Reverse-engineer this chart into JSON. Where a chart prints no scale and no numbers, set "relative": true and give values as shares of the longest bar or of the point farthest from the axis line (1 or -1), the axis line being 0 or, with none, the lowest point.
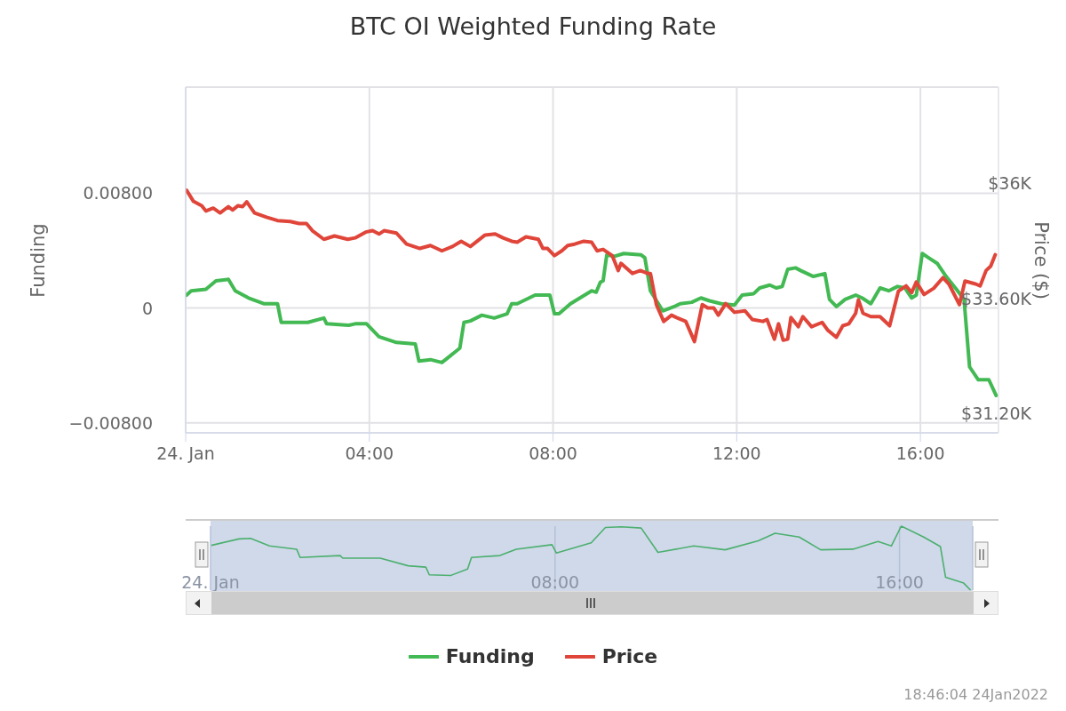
{
  "chart_data": [
    {
      "type": "line",
      "title": "BTC OI Weighted Funding Rate",
      "ylabel": "Funding",
      "y2label": "Price ($)",
      "xlim": [
        0,
        17.7
      ],
      "xticks": [
        {
          "value": 0,
          "label": "24. Jan"
        },
        {
          "value": 4,
          "label": "04:00"
        },
        {
          "value": 8,
          "label": "08:00"
        },
        {
          "value": 12,
          "label": "12:00"
        },
        {
          "value": 16,
          "label": "16:00"
        }
      ],
      "ylim": [
        -0.0087,
        0.0154
      ],
      "yticks": [
        {
          "value": -0.008,
          "label": "−0.00800"
        },
        0,
        {
          "value": 0.008,
          "label": "0.00800"
        }
      ],
      "y2lim": [
        31000,
        38200
      ],
      "y2ticks": [
        {
          "value": 31200,
          "label": "$31.20K"
        },
        {
          "value": 33600,
          "label": "$33.60K"
        },
        {
          "value": 36000,
          "label": "$36K"
        }
      ],
      "grid": true,
      "legend": "bottom",
      "marker": "none",
      "line_style": "solid",
      "annotations": [
        "18:46:04 24Jan2022"
      ],
      "series": [
        {
          "name": "Funding",
          "color": "#43b953",
          "x": [
            0.02,
            0.12,
            0.44,
            0.66,
            0.93,
            1.08,
            1.37,
            1.7,
            2.0,
            2.08,
            2.66,
            3.01,
            3.07,
            3.55,
            3.69,
            3.94,
            4.21,
            4.59,
            5.0,
            5.08,
            5.33,
            5.58,
            5.97,
            6.06,
            6.2,
            6.45,
            6.72,
            7.0,
            7.1,
            7.22,
            7.61,
            7.93,
            8.03,
            8.13,
            8.38,
            8.84,
            8.94,
            9.03,
            9.09,
            9.17,
            9.34,
            9.54,
            9.92,
            10.0,
            10.12,
            10.39,
            10.64,
            10.77,
            11.02,
            11.22,
            11.41,
            11.66,
            11.95,
            12.12,
            12.37,
            12.5,
            12.72,
            12.86,
            12.99,
            13.11,
            13.28,
            13.4,
            13.67,
            13.92,
            14.02,
            14.17,
            14.36,
            14.59,
            14.73,
            14.92,
            15.12,
            15.31,
            15.5,
            15.66,
            15.81,
            15.91,
            16.04,
            16.18,
            16.37,
            16.56,
            16.81,
            16.95,
            17.07,
            17.26,
            17.49,
            17.65
          ],
          "values": [
            0.0009,
            0.0012,
            0.0013,
            0.0019,
            0.002,
            0.0012,
            0.0007,
            0.0003,
            0.0003,
            -0.001,
            -0.001,
            -0.0007,
            -0.0011,
            -0.0012,
            -0.0011,
            -0.0011,
            -0.002,
            -0.0024,
            -0.0025,
            -0.0037,
            -0.0036,
            -0.0038,
            -0.0028,
            -0.001,
            -0.0009,
            -0.0005,
            -0.0007,
            -0.0004,
            0.0003,
            0.0003,
            0.0009,
            0.0009,
            -0.0004,
            -0.0004,
            0.0003,
            0.0012,
            0.0011,
            0.0018,
            0.0019,
            0.0037,
            0.0036,
            0.0038,
            0.0037,
            0.0035,
            0.0012,
            -0.0002,
            0.0001,
            0.0003,
            0.0004,
            0.0007,
            0.0005,
            0.0003,
            0.0002,
            0.0009,
            0.001,
            0.0014,
            0.0016,
            0.0014,
            0.0015,
            0.0027,
            0.0028,
            0.0026,
            0.0022,
            0.0024,
            0.0006,
            0.0001,
            0.0006,
            0.0009,
            0.0007,
            0.0003,
            0.0014,
            0.0012,
            0.0015,
            0.0014,
            0.0007,
            0.0009,
            0.0038,
            0.0035,
            0.0031,
            0.0022,
            0.0012,
            0.0006,
            -0.0041,
            -0.005,
            -0.005,
            -0.0061
          ]
        },
        {
          "name": "Price",
          "color": "#e0453a",
          "axis": "y2",
          "x": [
            0.02,
            0.17,
            0.35,
            0.44,
            0.6,
            0.75,
            0.93,
            1.02,
            1.14,
            1.24,
            1.33,
            1.5,
            1.76,
            2.0,
            2.28,
            2.47,
            2.63,
            2.76,
            3.01,
            3.24,
            3.53,
            3.69,
            3.92,
            4.07,
            4.21,
            4.32,
            4.59,
            4.81,
            5.1,
            5.33,
            5.58,
            5.81,
            6.0,
            6.2,
            6.52,
            6.74,
            6.91,
            7.1,
            7.22,
            7.41,
            7.68,
            7.78,
            7.88,
            8.03,
            8.19,
            8.32,
            8.47,
            8.67,
            8.84,
            8.96,
            9.09,
            9.29,
            9.42,
            9.48,
            9.73,
            9.9,
            10.06,
            10.12,
            10.25,
            10.41,
            10.58,
            10.69,
            10.89,
            11.08,
            11.25,
            11.37,
            11.5,
            11.6,
            11.76,
            11.95,
            12.18,
            12.34,
            12.57,
            12.66,
            12.82,
            12.91,
            13.01,
            13.11,
            13.18,
            13.34,
            13.44,
            13.63,
            13.86,
            13.98,
            14.17,
            14.31,
            14.44,
            14.59,
            14.65,
            14.75,
            14.92,
            15.12,
            15.33,
            15.52,
            15.69,
            15.81,
            15.91,
            16.08,
            16.29,
            16.49,
            16.62,
            16.85,
            16.97,
            17.2,
            17.3,
            17.43,
            17.53,
            17.63
          ],
          "values": [
            36050,
            35820,
            35730,
            35620,
            35680,
            35580,
            35710,
            35640,
            35730,
            35710,
            35810,
            35580,
            35490,
            35420,
            35400,
            35360,
            35360,
            35210,
            35030,
            35100,
            35030,
            35060,
            35180,
            35210,
            35140,
            35210,
            35160,
            34930,
            34840,
            34900,
            34790,
            34880,
            34990,
            34880,
            35120,
            35140,
            35060,
            34990,
            34970,
            35080,
            35030,
            34840,
            34840,
            34690,
            34790,
            34900,
            34930,
            34990,
            34970,
            34790,
            34820,
            34690,
            34380,
            34530,
            34320,
            34380,
            34320,
            34320,
            33670,
            33320,
            33450,
            33400,
            33320,
            32900,
            33670,
            33600,
            33600,
            33450,
            33690,
            33510,
            33540,
            33360,
            33320,
            33360,
            32950,
            33270,
            32930,
            32950,
            33400,
            33210,
            33420,
            33210,
            33300,
            33140,
            32990,
            33230,
            33270,
            33490,
            33770,
            33490,
            33420,
            33420,
            33230,
            33950,
            34060,
            33920,
            34140,
            33880,
            34010,
            34230,
            34100,
            33670,
            34160,
            34100,
            34060,
            34380,
            34470,
            34710
          ]
        }
      ]
    },
    {
      "type": "line",
      "relative": true,
      "xlim": [
        0,
        17.7
      ],
      "grid": "x",
      "marker": "none",
      "xticks": [
        {
          "value": 0,
          "label": "24. Jan"
        },
        {
          "value": 8,
          "label": "08:00"
        },
        {
          "value": 16,
          "label": "16:00"
        }
      ],
      "series": [
        {
          "color": "#4caf6e",
          "x": [
            0.02,
            0.66,
            0.93,
            1.37,
            2.0,
            2.08,
            3.01,
            3.07,
            3.94,
            4.59,
            5.0,
            5.08,
            5.58,
            5.97,
            6.06,
            6.72,
            7.1,
            7.93,
            8.03,
            8.84,
            9.17,
            9.54,
            10.0,
            10.39,
            11.22,
            11.95,
            12.72,
            13.11,
            13.67,
            14.17,
            14.92,
            15.5,
            15.81,
            16.04,
            16.56,
            16.95,
            17.07,
            17.49,
            17.65
          ],
          "values": [
            0.7,
            0.8,
            0.81,
            0.69,
            0.64,
            0.51,
            0.54,
            0.5,
            0.5,
            0.38,
            0.36,
            0.24,
            0.23,
            0.33,
            0.51,
            0.54,
            0.64,
            0.71,
            0.58,
            0.74,
            0.98,
            0.99,
            0.97,
            0.59,
            0.69,
            0.63,
            0.77,
            0.89,
            0.83,
            0.63,
            0.64,
            0.76,
            0.69,
            1,
            0.83,
            0.68,
            0.2,
            0.11,
            0
          ]
        }
      ]
    }
  ]
}
